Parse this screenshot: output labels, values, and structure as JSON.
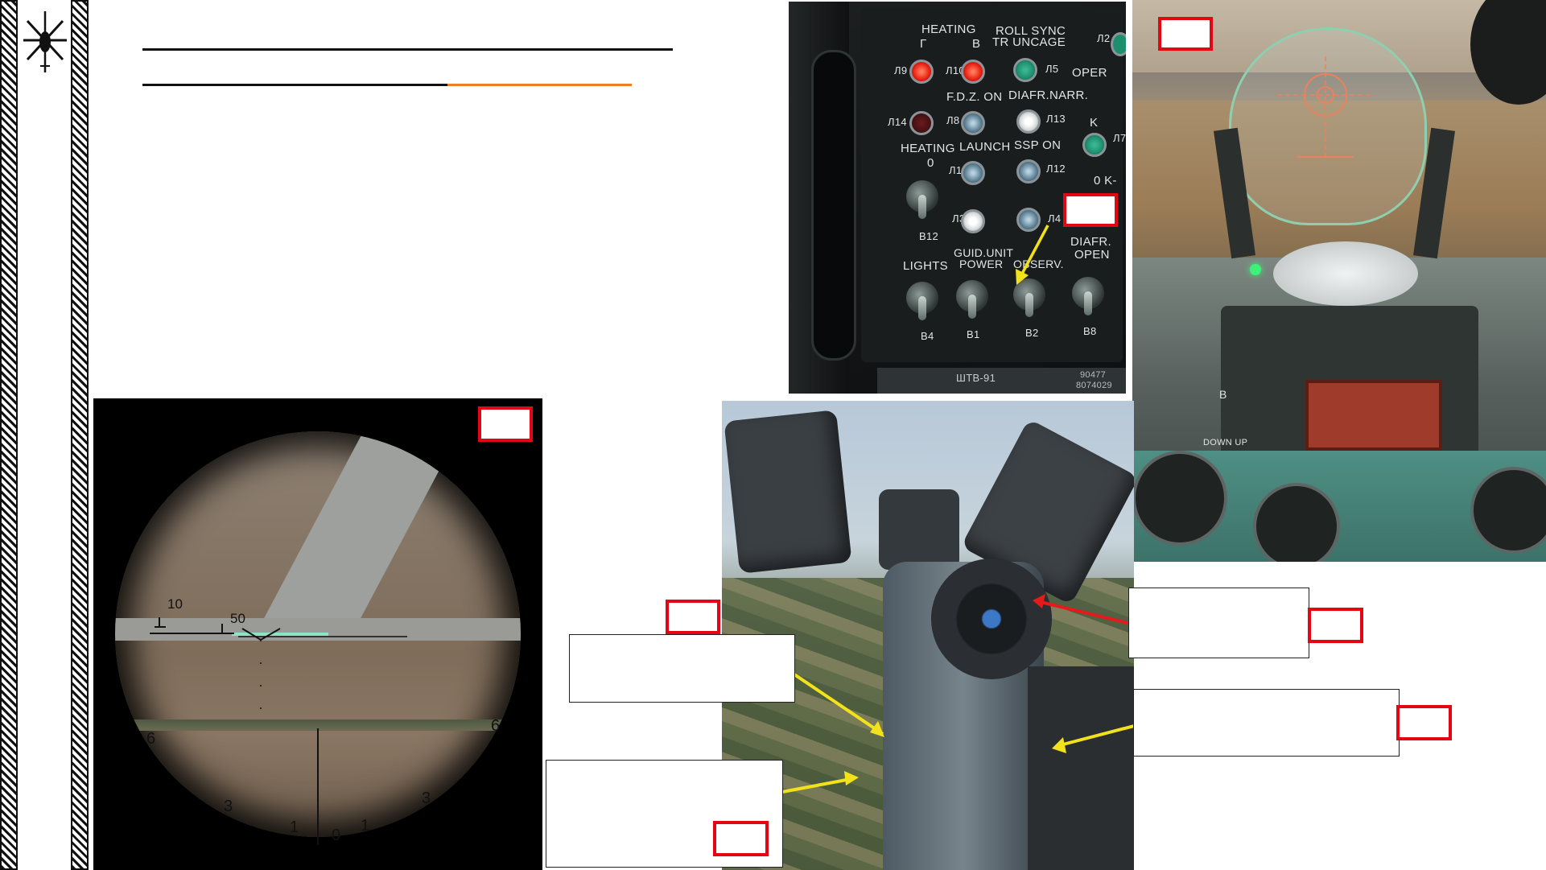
{
  "slide": {
    "logo_icon": "helicopter-icon",
    "title_underline_color": "#111111",
    "accent_underline_color": "#f07d1e"
  },
  "panel": {
    "labels": {
      "heating_top": "HEATING",
      "heating_g": "Г",
      "heating_v": "В",
      "roll_sync": "ROLL SYNC",
      "tr_uncage": "TR UNCAGE",
      "oper": "OPER",
      "fdz_on": "F.D.Z. ON",
      "diafr_narr": "DIAFR.NARR.",
      "heating_mid": "HEATING",
      "heating_zero": "0",
      "launch": "LAUNCH",
      "ssp_on": "SSP ON",
      "k": "K",
      "zero_k": "0  K-",
      "lights": "LIGHTS",
      "guid_unit": "GUID.UNIT",
      "power": "POWER",
      "observ": "OBSERV.",
      "diafr": "DIAFR.",
      "open": "OPEN",
      "plate": "ШТВ-91",
      "serial_a": "90477",
      "serial_b": "8074029"
    },
    "lamp_codes": {
      "l9": "Л9",
      "l10": "Л10",
      "l5": "Л5",
      "l2": "Л2",
      "l14": "Л14",
      "l8": "Л8",
      "l13a": "Л13",
      "l7": "Л7",
      "l11": "Л11",
      "l12": "Л12",
      "l3": "Л3",
      "l4": "Л4"
    },
    "switch_codes": {
      "b12": "В12",
      "b4": "В4",
      "b1": "В1",
      "b2": "В2",
      "b8": "В8"
    }
  },
  "scope": {
    "range_labels": {
      "left_10": "10",
      "left_50": "50"
    },
    "mil_labels": {
      "six_left": "6",
      "six_right": "6",
      "three_left": "3",
      "three_right": "3",
      "one_left": "1",
      "zero": "0",
      "one_right": "1"
    }
  },
  "cockpit": {
    "label_b": "B",
    "label_down_up": "DOWN  UP"
  },
  "colors": {
    "callout_red": "#e30613",
    "arrow_yellow": "#f2e21b",
    "arrow_red": "#e31b1b",
    "lamp_red": "#ff3b1f",
    "lamp_green": "#1e8f6e"
  }
}
